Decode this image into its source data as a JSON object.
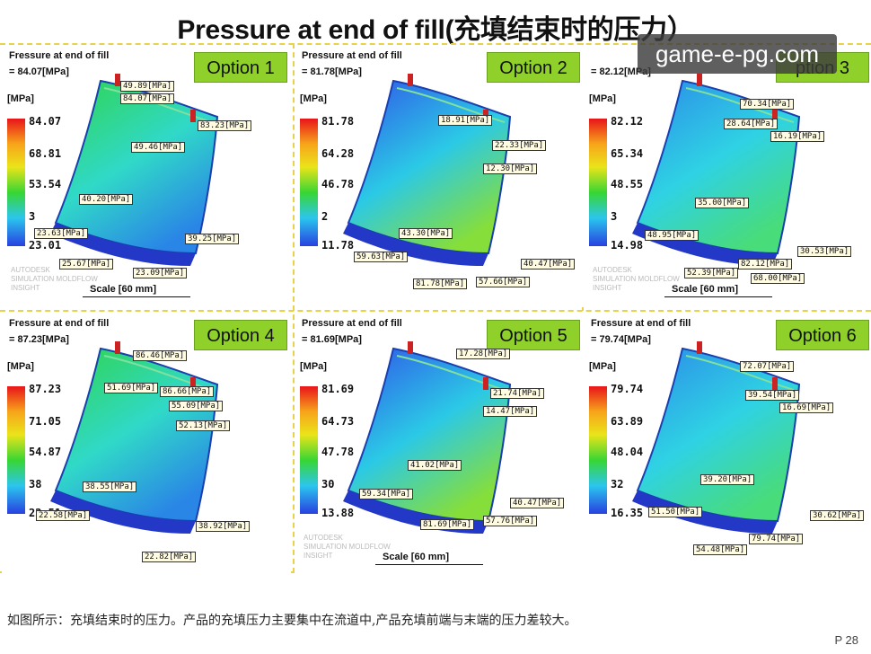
{
  "title": "Pressure at end of fill(充填结束时的压力）",
  "watermark": "game-e-pg.com",
  "footer": "如图所示：充填结束时的压力。产品的充填压力主要集中在流道中,产品充填前端与末端的压力差较大。",
  "page_number": "P 28",
  "panels": [
    {
      "option": "Option 1",
      "plot_title": "Fressure at end of fill",
      "max": "= 84.07[MPa]",
      "unit": "[MPa]",
      "ticks": [
        "84.07",
        "68.81",
        "53.54",
        "3",
        "23.01"
      ],
      "labels": [
        "49.89[MPa]",
        "84.07[MPa]",
        "83.23[MPa]",
        "49.46[MPa]",
        "40.20[MPa]",
        "23.63[MPa]",
        "39.25[MPa]",
        "25.67[MPa]",
        "23.09[MPa]"
      ],
      "brand": [
        "AUTODESK",
        "SIMULATION MOLDFLOW",
        "INSIGHT"
      ],
      "scale": "Scale [60 mm]",
      "gradient": "green-cyan"
    },
    {
      "option": "Option 2",
      "plot_title": "Pressure at end of fill",
      "max": "= 81.78[MPa]",
      "unit": "[MPa]",
      "ticks": [
        "81.78",
        "64.28",
        "46.78",
        "2",
        "11.78"
      ],
      "labels": [
        "18.91[MPa]",
        "22.33[MPa]",
        "12.30[MPa]",
        "43.30[MPa]",
        "59.63[MPa]",
        "40.47[MPa]",
        "81.78[MPa]",
        "57.66[MPa]"
      ],
      "brand": [],
      "scale": "",
      "gradient": "blue-green"
    },
    {
      "option": "ption 3",
      "plot_title": "",
      "max": "= 82.12[MPa]",
      "unit": "[MPa]",
      "ticks": [
        "82.12",
        "65.34",
        "48.55",
        "3",
        "14.98"
      ],
      "labels": [
        "70.34[MPa]",
        "28.64[MPa]",
        "16.19[MPa]",
        "35.00[MPa]",
        "48.95[MPa]",
        "30.53[MPa]",
        "82.12[MPa]",
        "52.39[MPa]",
        "68.00[MPa]"
      ],
      "brand": [
        "AUTODESK",
        "SIMULATION MOLDFLOW",
        "INSIGHT"
      ],
      "scale": "Scale [60 mm]",
      "gradient": "cyan-green"
    },
    {
      "option": "Option 4",
      "plot_title": "Fressure at end of fill",
      "max": "= 87.23[MPa]",
      "unit": "[MPa]",
      "ticks": [
        "87.23",
        "71.05",
        "54.87",
        "38",
        "22.51"
      ],
      "labels": [
        "86.46[MPa]",
        "51.69[MPa]",
        "86.66[MPa]",
        "55.09[MPa]",
        "52.13[MPa]",
        "38.55[MPa]",
        "22.58[MPa]",
        "38.92[MPa]",
        "22.82[MPa]"
      ],
      "brand": [],
      "scale": "",
      "gradient": "green-cyan"
    },
    {
      "option": "Option 5",
      "plot_title": "Pressure at end of fill",
      "max": "= 81.69[MPa]",
      "unit": "[MPa]",
      "ticks": [
        "81.69",
        "64.73",
        "47.78",
        "30",
        "13.88"
      ],
      "labels": [
        "17.28[MPa]",
        "21.74[MPa]",
        "14.47[MPa]",
        "41.02[MPa]",
        "59.34[MPa]",
        "40.47[MPa]",
        "81.69[MPa]",
        "57.76[MPa]"
      ],
      "brand": [
        "AUTODESK",
        "SIMULATION MOLDFLOW",
        "INSIGHT"
      ],
      "scale": "Scale [60 mm]",
      "gradient": "blue-green"
    },
    {
      "option": "Option 6",
      "plot_title": "Fressure at end of fill",
      "max": "= 79.74[MPa]",
      "unit": "[MPa]",
      "ticks": [
        "79.74",
        "63.89",
        "48.04",
        "32",
        "16.35"
      ],
      "labels": [
        "72.07[MPa]",
        "39.54[MPa]",
        "16.69[MPa]",
        "39.20[MPa]",
        "51.50[MPa]",
        "30.62[MPa]",
        "79.74[MPa]",
        "54.48[MPa]"
      ],
      "brand": [],
      "scale": "",
      "gradient": "cyan-green"
    }
  ]
}
